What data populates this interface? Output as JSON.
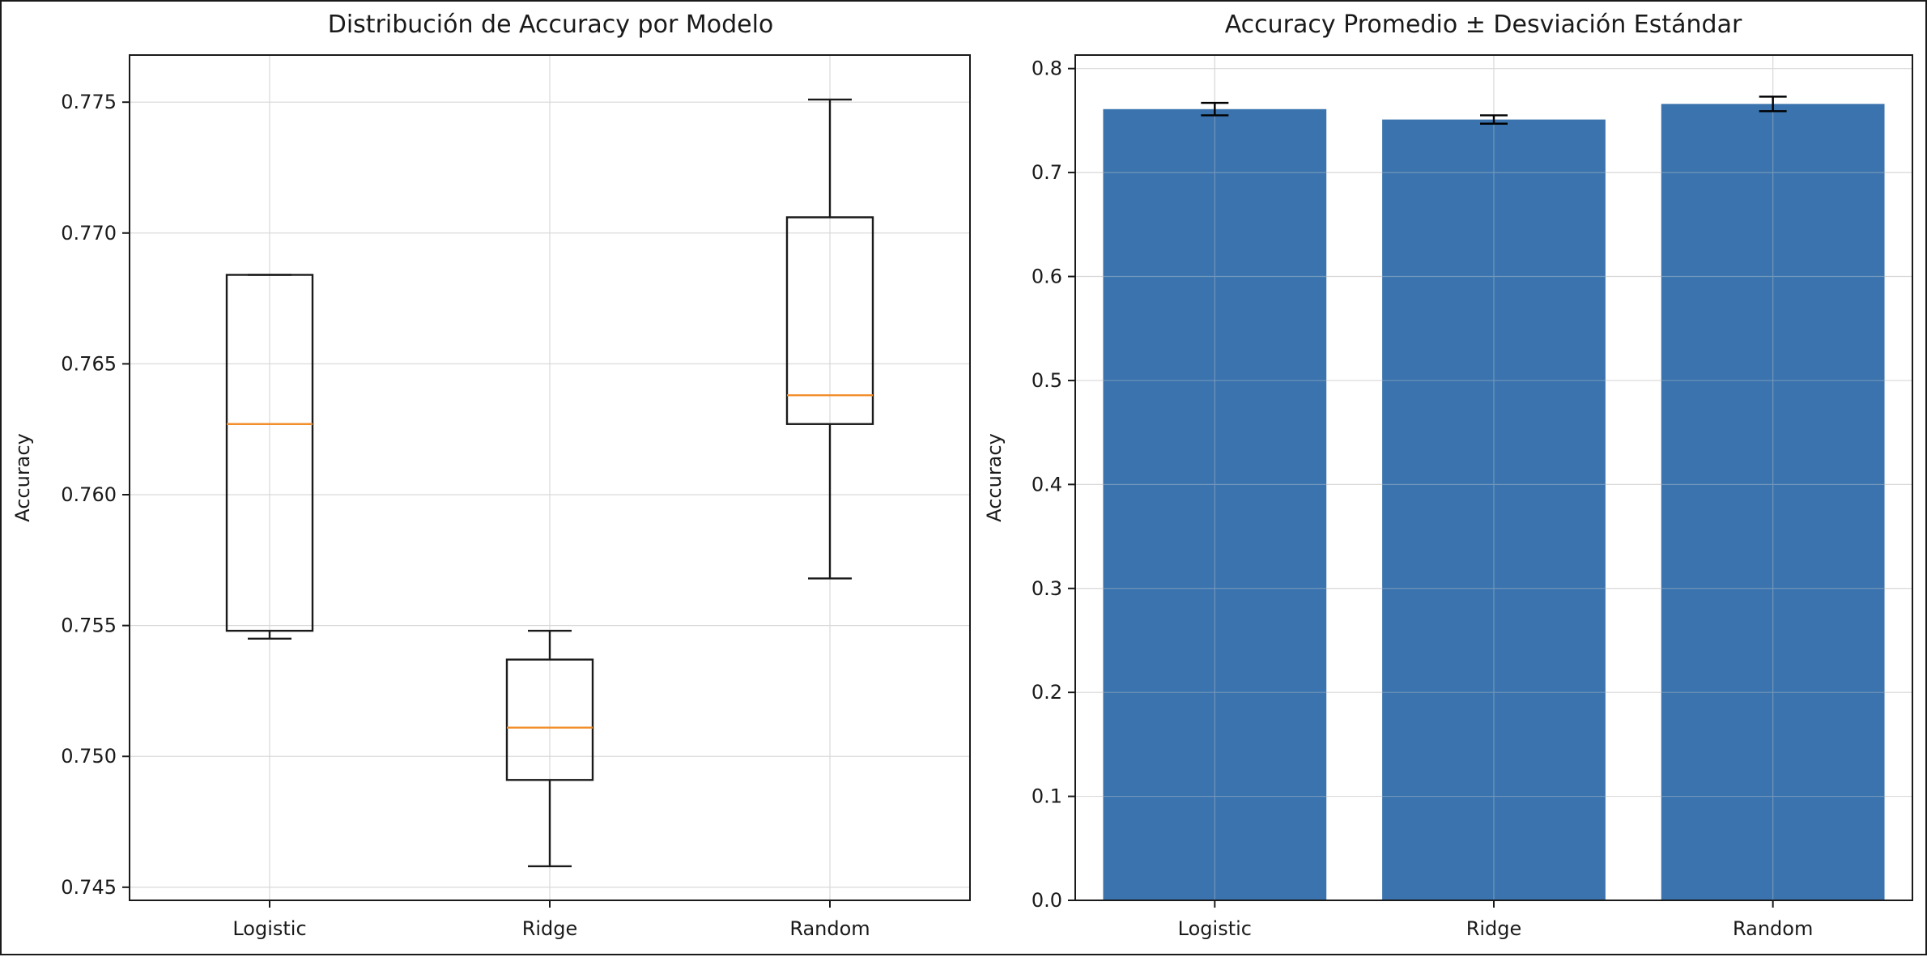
{
  "colors": {
    "bar": "#3a73ad",
    "median": "#f28e2b",
    "box": "#1a1a1a",
    "grid": "#d9d9d9",
    "errorbar": "#000000"
  },
  "chart_data": [
    {
      "type": "boxplot",
      "title": "Distribución de Accuracy por Modelo",
      "xlabel": "",
      "ylabel": "Accuracy",
      "categories": [
        "Logistic",
        "Ridge",
        "Random"
      ],
      "ylim": [
        0.7445,
        0.7768
      ],
      "yticks": [
        0.745,
        0.75,
        0.755,
        0.76,
        0.765,
        0.77,
        0.775
      ],
      "ytick_labels": [
        "0.745",
        "0.750",
        "0.755",
        "0.760",
        "0.765",
        "0.770",
        "0.775"
      ],
      "grid": true,
      "boxes": [
        {
          "label": "Logistic",
          "whisker_low": 0.7545,
          "q1": 0.7548,
          "median": 0.7627,
          "q3": 0.7684,
          "whisker_high": 0.7684
        },
        {
          "label": "Ridge",
          "whisker_low": 0.7458,
          "q1": 0.7491,
          "median": 0.7511,
          "q3": 0.7537,
          "whisker_high": 0.7548
        },
        {
          "label": "Random",
          "whisker_low": 0.7568,
          "q1": 0.7627,
          "median": 0.7638,
          "q3": 0.7706,
          "whisker_high": 0.7751
        }
      ]
    },
    {
      "type": "bar",
      "title": "Accuracy Promedio ± Desviación Estándar",
      "xlabel": "",
      "ylabel": "Accuracy",
      "categories": [
        "Logistic",
        "Ridge",
        "Random"
      ],
      "values": [
        0.761,
        0.751,
        0.766
      ],
      "errors": [
        0.006,
        0.004,
        0.007
      ],
      "ylim": [
        0,
        0.813
      ],
      "yticks": [
        0,
        0.1,
        0.2,
        0.3,
        0.4,
        0.5,
        0.6,
        0.7,
        0.8
      ],
      "ytick_labels": [
        "0.0",
        "0.1",
        "0.2",
        "0.3",
        "0.4",
        "0.5",
        "0.6",
        "0.7",
        "0.8"
      ],
      "grid": true
    }
  ]
}
